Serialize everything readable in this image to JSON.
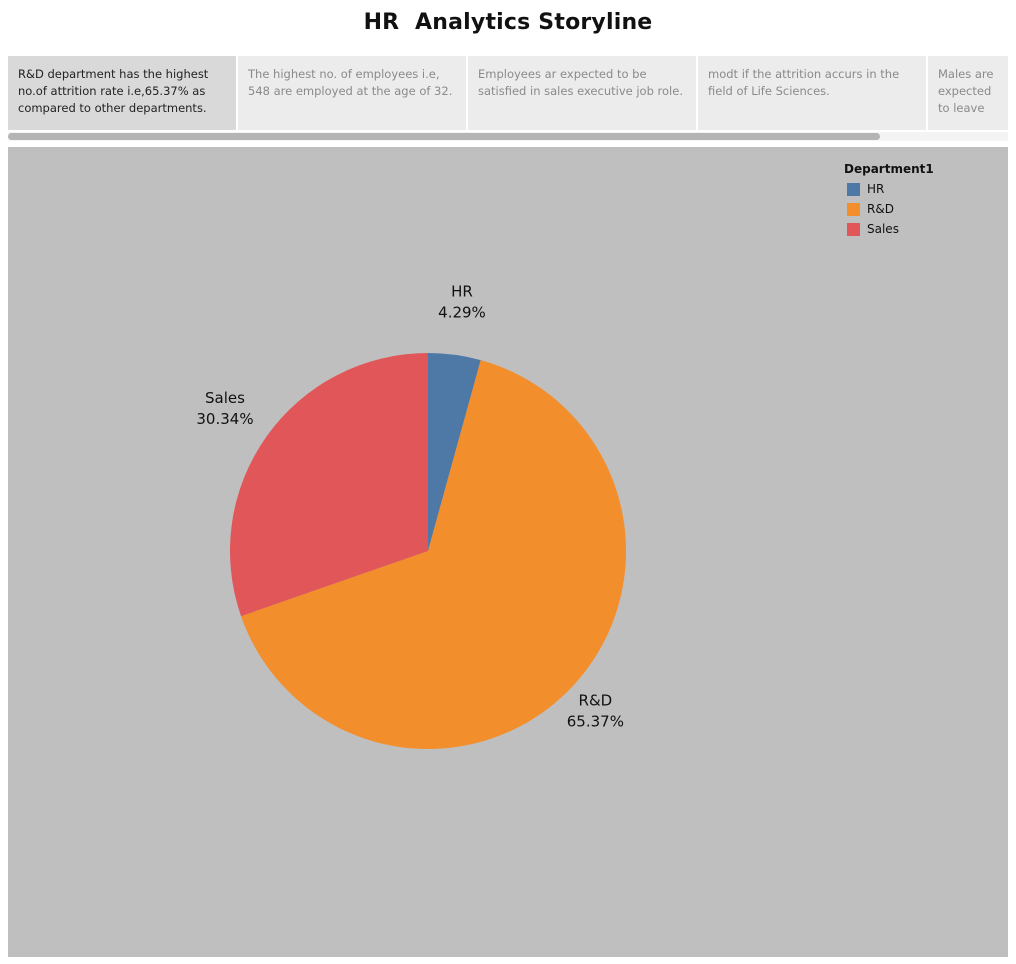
{
  "title": "HR  Analytics Storyline",
  "story_points": [
    {
      "text": "R&D department has the highest no.of attrition rate i.e,65.37% as compared to other departments.",
      "active": true
    },
    {
      "text": "The highest no. of employees i.e, 548 are employed at the age of 32.",
      "active": false
    },
    {
      "text": "Employees ar expected to be satisfied in sales executive job role.",
      "active": false
    },
    {
      "text": "modt if the attrition accurs in the field of Life Sciences.",
      "active": false
    },
    {
      "text": "Males are expected to leave the o..",
      "active": false
    }
  ],
  "chart_data": {
    "type": "pie",
    "legend_title": "Department1",
    "legend_position": "top-right",
    "slices": [
      {
        "label": "HR",
        "percent_label": "4.29%",
        "value": 4.29,
        "color": "#4e79a7"
      },
      {
        "label": "R&D",
        "percent_label": "65.37%",
        "value": 65.37,
        "color": "#f28e2b"
      },
      {
        "label": "Sales",
        "percent_label": "30.34%",
        "value": 30.34,
        "color": "#e15759"
      }
    ]
  }
}
